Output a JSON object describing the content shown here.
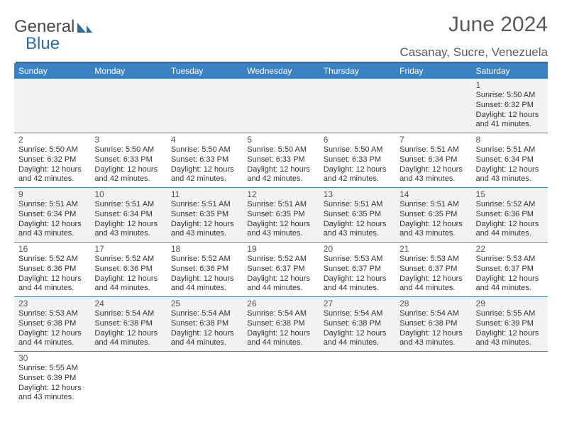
{
  "logo": {
    "word1": "General",
    "word2": "Blue"
  },
  "title": "June 2024",
  "location": "Casanay, Sucre, Venezuela",
  "colors": {
    "header_bg": "#3b82c4",
    "header_text": "#ffffff",
    "border": "#3b82c4",
    "alt_row": "#f2f2f2",
    "text": "#333333",
    "title": "#5a5a5a"
  },
  "daynames": [
    "Sunday",
    "Monday",
    "Tuesday",
    "Wednesday",
    "Thursday",
    "Friday",
    "Saturday"
  ],
  "weeks": [
    [
      null,
      null,
      null,
      null,
      null,
      null,
      {
        "n": "1",
        "sr": "Sunrise: 5:50 AM",
        "ss": "Sunset: 6:32 PM",
        "d1": "Daylight: 12 hours",
        "d2": "and 41 minutes."
      }
    ],
    [
      {
        "n": "2",
        "sr": "Sunrise: 5:50 AM",
        "ss": "Sunset: 6:32 PM",
        "d1": "Daylight: 12 hours",
        "d2": "and 42 minutes."
      },
      {
        "n": "3",
        "sr": "Sunrise: 5:50 AM",
        "ss": "Sunset: 6:33 PM",
        "d1": "Daylight: 12 hours",
        "d2": "and 42 minutes."
      },
      {
        "n": "4",
        "sr": "Sunrise: 5:50 AM",
        "ss": "Sunset: 6:33 PM",
        "d1": "Daylight: 12 hours",
        "d2": "and 42 minutes."
      },
      {
        "n": "5",
        "sr": "Sunrise: 5:50 AM",
        "ss": "Sunset: 6:33 PM",
        "d1": "Daylight: 12 hours",
        "d2": "and 42 minutes."
      },
      {
        "n": "6",
        "sr": "Sunrise: 5:50 AM",
        "ss": "Sunset: 6:33 PM",
        "d1": "Daylight: 12 hours",
        "d2": "and 42 minutes."
      },
      {
        "n": "7",
        "sr": "Sunrise: 5:51 AM",
        "ss": "Sunset: 6:34 PM",
        "d1": "Daylight: 12 hours",
        "d2": "and 43 minutes."
      },
      {
        "n": "8",
        "sr": "Sunrise: 5:51 AM",
        "ss": "Sunset: 6:34 PM",
        "d1": "Daylight: 12 hours",
        "d2": "and 43 minutes."
      }
    ],
    [
      {
        "n": "9",
        "sr": "Sunrise: 5:51 AM",
        "ss": "Sunset: 6:34 PM",
        "d1": "Daylight: 12 hours",
        "d2": "and 43 minutes."
      },
      {
        "n": "10",
        "sr": "Sunrise: 5:51 AM",
        "ss": "Sunset: 6:34 PM",
        "d1": "Daylight: 12 hours",
        "d2": "and 43 minutes."
      },
      {
        "n": "11",
        "sr": "Sunrise: 5:51 AM",
        "ss": "Sunset: 6:35 PM",
        "d1": "Daylight: 12 hours",
        "d2": "and 43 minutes."
      },
      {
        "n": "12",
        "sr": "Sunrise: 5:51 AM",
        "ss": "Sunset: 6:35 PM",
        "d1": "Daylight: 12 hours",
        "d2": "and 43 minutes."
      },
      {
        "n": "13",
        "sr": "Sunrise: 5:51 AM",
        "ss": "Sunset: 6:35 PM",
        "d1": "Daylight: 12 hours",
        "d2": "and 43 minutes."
      },
      {
        "n": "14",
        "sr": "Sunrise: 5:51 AM",
        "ss": "Sunset: 6:35 PM",
        "d1": "Daylight: 12 hours",
        "d2": "and 43 minutes."
      },
      {
        "n": "15",
        "sr": "Sunrise: 5:52 AM",
        "ss": "Sunset: 6:36 PM",
        "d1": "Daylight: 12 hours",
        "d2": "and 44 minutes."
      }
    ],
    [
      {
        "n": "16",
        "sr": "Sunrise: 5:52 AM",
        "ss": "Sunset: 6:36 PM",
        "d1": "Daylight: 12 hours",
        "d2": "and 44 minutes."
      },
      {
        "n": "17",
        "sr": "Sunrise: 5:52 AM",
        "ss": "Sunset: 6:36 PM",
        "d1": "Daylight: 12 hours",
        "d2": "and 44 minutes."
      },
      {
        "n": "18",
        "sr": "Sunrise: 5:52 AM",
        "ss": "Sunset: 6:36 PM",
        "d1": "Daylight: 12 hours",
        "d2": "and 44 minutes."
      },
      {
        "n": "19",
        "sr": "Sunrise: 5:52 AM",
        "ss": "Sunset: 6:37 PM",
        "d1": "Daylight: 12 hours",
        "d2": "and 44 minutes."
      },
      {
        "n": "20",
        "sr": "Sunrise: 5:53 AM",
        "ss": "Sunset: 6:37 PM",
        "d1": "Daylight: 12 hours",
        "d2": "and 44 minutes."
      },
      {
        "n": "21",
        "sr": "Sunrise: 5:53 AM",
        "ss": "Sunset: 6:37 PM",
        "d1": "Daylight: 12 hours",
        "d2": "and 44 minutes."
      },
      {
        "n": "22",
        "sr": "Sunrise: 5:53 AM",
        "ss": "Sunset: 6:37 PM",
        "d1": "Daylight: 12 hours",
        "d2": "and 44 minutes."
      }
    ],
    [
      {
        "n": "23",
        "sr": "Sunrise: 5:53 AM",
        "ss": "Sunset: 6:38 PM",
        "d1": "Daylight: 12 hours",
        "d2": "and 44 minutes."
      },
      {
        "n": "24",
        "sr": "Sunrise: 5:54 AM",
        "ss": "Sunset: 6:38 PM",
        "d1": "Daylight: 12 hours",
        "d2": "and 44 minutes."
      },
      {
        "n": "25",
        "sr": "Sunrise: 5:54 AM",
        "ss": "Sunset: 6:38 PM",
        "d1": "Daylight: 12 hours",
        "d2": "and 44 minutes."
      },
      {
        "n": "26",
        "sr": "Sunrise: 5:54 AM",
        "ss": "Sunset: 6:38 PM",
        "d1": "Daylight: 12 hours",
        "d2": "and 44 minutes."
      },
      {
        "n": "27",
        "sr": "Sunrise: 5:54 AM",
        "ss": "Sunset: 6:38 PM",
        "d1": "Daylight: 12 hours",
        "d2": "and 44 minutes."
      },
      {
        "n": "28",
        "sr": "Sunrise: 5:54 AM",
        "ss": "Sunset: 6:38 PM",
        "d1": "Daylight: 12 hours",
        "d2": "and 43 minutes."
      },
      {
        "n": "29",
        "sr": "Sunrise: 5:55 AM",
        "ss": "Sunset: 6:39 PM",
        "d1": "Daylight: 12 hours",
        "d2": "and 43 minutes."
      }
    ],
    [
      {
        "n": "30",
        "sr": "Sunrise: 5:55 AM",
        "ss": "Sunset: 6:39 PM",
        "d1": "Daylight: 12 hours",
        "d2": "and 43 minutes."
      },
      null,
      null,
      null,
      null,
      null,
      null
    ]
  ]
}
